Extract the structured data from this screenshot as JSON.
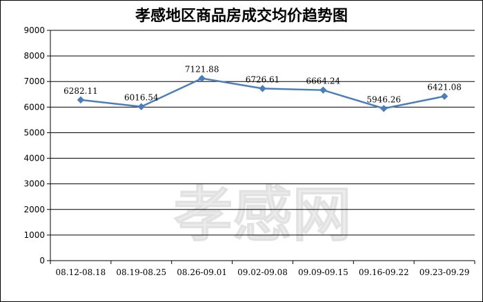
{
  "chart_data": {
    "type": "line",
    "title": "孝感地区商品房成交均价趋势图",
    "categories": [
      "08.12-08.18",
      "08.19-08.25",
      "08.26-09.01",
      "09.02-09.08",
      "09.09-09.15",
      "09.16-09.22",
      "09.23-09.29"
    ],
    "series": [
      {
        "values": [
          6282.11,
          6016.54,
          7121.88,
          6726.61,
          6664.24,
          5946.26,
          6421.08
        ]
      }
    ],
    "data_labels": [
      "6282.11",
      "6016.54",
      "7121.88",
      "6726.61",
      "6664.24",
      "5946.26",
      "6421.08"
    ],
    "ylim": [
      0,
      9000
    ],
    "yticks": [
      0,
      1000,
      2000,
      3000,
      4000,
      5000,
      6000,
      7000,
      8000,
      9000
    ],
    "grid": true,
    "line_color": "#4a7ebb",
    "watermark": "孝感网"
  }
}
